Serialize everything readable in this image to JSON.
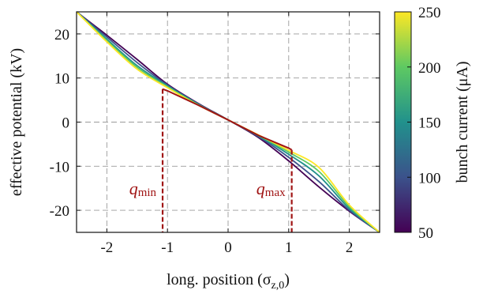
{
  "chart_data": {
    "type": "line",
    "xlabel": "long. position (σ",
    "xlabel_sub": "z,0",
    "xlabel_close": ")",
    "ylabel": "effective potential (kV)",
    "xlim": [
      -2.5,
      2.5
    ],
    "ylim": [
      -25,
      25
    ],
    "x_ticks": [
      -2,
      -1,
      0,
      1,
      2
    ],
    "x_tick_labels": [
      "-2",
      "-1",
      "0",
      "1",
      "2"
    ],
    "y_ticks": [
      -20,
      -10,
      0,
      10,
      20
    ],
    "y_tick_labels": [
      "-20",
      "-10",
      "0",
      "10",
      "20"
    ],
    "grid": true,
    "colorbar": {
      "label": "bunch current (μA)",
      "range": [
        50,
        250
      ],
      "ticks": [
        50,
        100,
        150,
        200,
        250
      ],
      "tick_labels": [
        "50",
        "100",
        "150",
        "200",
        "250"
      ],
      "colormap": [
        "#440154",
        "#3b528b",
        "#21918c",
        "#5ec962",
        "#fde725"
      ]
    },
    "series": [
      {
        "current": 50,
        "color": "#440154",
        "x": [
          -2.5,
          -2.0,
          -1.5,
          -1.0,
          -0.5,
          0.0,
          0.5,
          1.0,
          1.5,
          2.0,
          2.5
        ],
        "y": [
          25,
          19.7,
          14.2,
          8.6,
          4.3,
          0.5,
          -3.5,
          -8.8,
          -14.7,
          -20.2,
          -25
        ]
      },
      {
        "current": 100,
        "color": "#3b528b",
        "x": [
          -2.5,
          -2.0,
          -1.5,
          -1.0,
          -0.5,
          0.0,
          0.5,
          1.0,
          1.5,
          2.0,
          2.5
        ],
        "y": [
          25,
          19.3,
          13.5,
          8.4,
          4.2,
          0.5,
          -3.3,
          -8.0,
          -13.5,
          -20.0,
          -25
        ]
      },
      {
        "current": 150,
        "color": "#21918c",
        "x": [
          -2.5,
          -2.0,
          -1.5,
          -1.0,
          -0.5,
          0.0,
          0.5,
          1.0,
          1.5,
          2.0,
          2.5
        ],
        "y": [
          25,
          18.8,
          12.8,
          8.2,
          4.1,
          0.5,
          -3.1,
          -7.3,
          -12.2,
          -19.6,
          -25
        ]
      },
      {
        "current": 200,
        "color": "#5ec962",
        "x": [
          -2.5,
          -2.0,
          -1.5,
          -1.0,
          -0.5,
          0.0,
          0.5,
          1.0,
          1.5,
          2.0,
          2.5
        ],
        "y": [
          25,
          18.5,
          12.4,
          8.0,
          4.0,
          0.5,
          -3.0,
          -6.8,
          -11.2,
          -19.2,
          -25
        ]
      },
      {
        "current": 250,
        "color": "#fde725",
        "x": [
          -2.5,
          -2.0,
          -1.5,
          -1.0,
          -0.5,
          0.0,
          0.5,
          1.0,
          1.5,
          2.0,
          2.5
        ],
        "y": [
          25,
          18.2,
          12.0,
          7.8,
          3.9,
          0.5,
          -2.9,
          -6.4,
          -10.3,
          -18.8,
          -25
        ]
      }
    ],
    "threshold_line": {
      "color": "#a01414",
      "x": [
        -1.08,
        -1.0,
        -0.5,
        0.0,
        0.5,
        1.0,
        1.05
      ],
      "y": [
        7.5,
        7.1,
        3.9,
        0.5,
        -3.0,
        -5.9,
        -6.3
      ]
    },
    "markers": [
      {
        "label": "q",
        "sub": "min",
        "x": -1.08,
        "y_top": 7.5,
        "color": "#a01414"
      },
      {
        "label": "q",
        "sub": "max",
        "x": 1.05,
        "y_top": -6.3,
        "color": "#a01414"
      }
    ]
  }
}
